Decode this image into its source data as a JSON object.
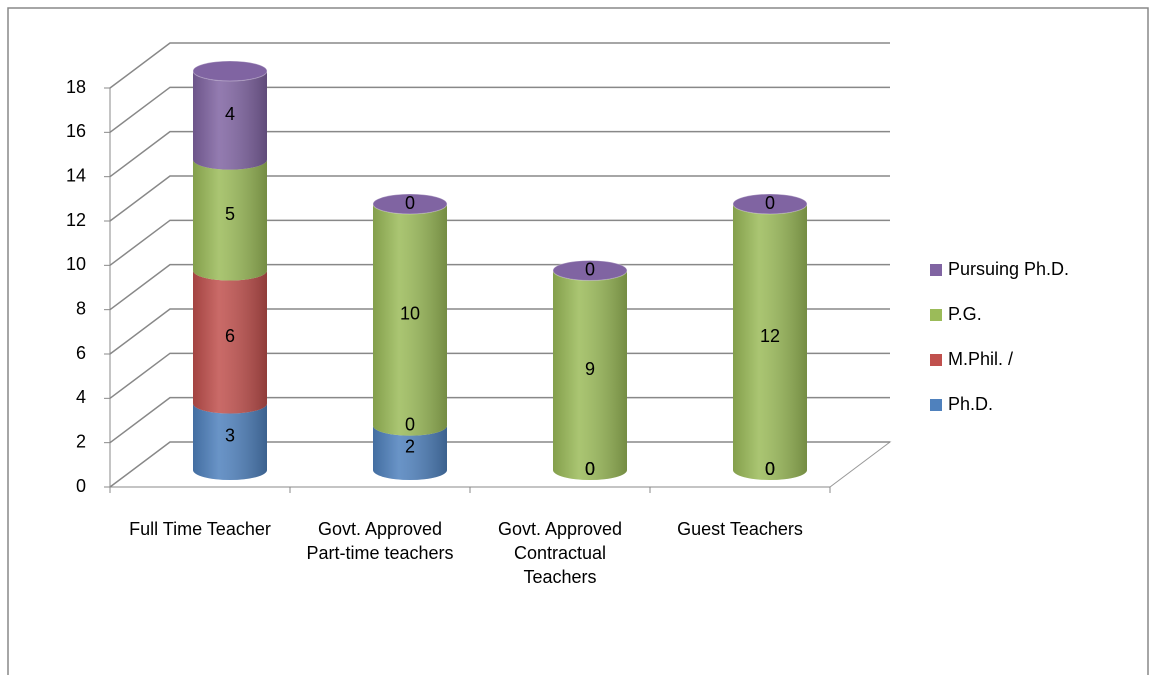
{
  "chart_data": {
    "type": "bar",
    "categories": [
      "Full Time Teacher",
      "Govt. Approved Part-time teachers",
      "Govt. Approved Contractual Teachers",
      "Guest Teachers"
    ],
    "series": [
      {
        "name": "Ph.D.",
        "color": "#4f81bd",
        "values": [
          3,
          2,
          0,
          0
        ]
      },
      {
        "name": "M.Phil. /",
        "color": "#c0504d",
        "values": [
          6,
          0,
          0,
          0
        ]
      },
      {
        "name": "P.G.",
        "color": "#9bbb59",
        "values": [
          5,
          10,
          9,
          12
        ]
      },
      {
        "name": "Pursuing Ph.D.",
        "color": "#8064a2",
        "values": [
          4,
          0,
          0,
          0
        ]
      }
    ],
    "ylim": [
      0,
      18
    ],
    "yticks": [
      0,
      2,
      4,
      6,
      8,
      10,
      12,
      14,
      16,
      18
    ],
    "grid": true,
    "legend": "right",
    "stacked": true
  }
}
